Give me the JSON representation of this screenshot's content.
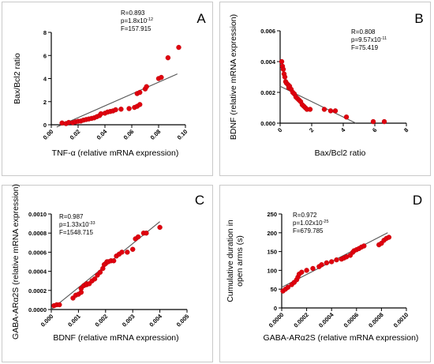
{
  "chart_data": [
    {
      "panel": "A",
      "type": "scatter",
      "xlabel": "TNF-α (relative mRNA expression)",
      "ylabel": "Bax/Bcl2 ratio",
      "xlim": [
        0.0,
        0.1
      ],
      "ylim": [
        0,
        8
      ],
      "xticks": [
        "0.00",
        "0.02",
        "0.04",
        "0.06",
        "0.08",
        "0.10"
      ],
      "yticks": [
        "0",
        "2",
        "4",
        "6",
        "8"
      ],
      "stats": [
        {
          "base": "R=0.893"
        },
        {
          "base": "p=1.8x10",
          "exp": "-12"
        },
        {
          "base": "F=157.915"
        }
      ],
      "points": [
        [
          0.008,
          0.15
        ],
        [
          0.011,
          0.1
        ],
        [
          0.013,
          0.2
        ],
        [
          0.016,
          0.18
        ],
        [
          0.018,
          0.25
        ],
        [
          0.02,
          0.3
        ],
        [
          0.022,
          0.32
        ],
        [
          0.024,
          0.4
        ],
        [
          0.026,
          0.45
        ],
        [
          0.028,
          0.5
        ],
        [
          0.03,
          0.55
        ],
        [
          0.032,
          0.6
        ],
        [
          0.034,
          0.7
        ],
        [
          0.036,
          0.8
        ],
        [
          0.037,
          0.95
        ],
        [
          0.04,
          1.0
        ],
        [
          0.042,
          1.1
        ],
        [
          0.044,
          1.15
        ],
        [
          0.046,
          1.2
        ],
        [
          0.048,
          1.3
        ],
        [
          0.052,
          1.35
        ],
        [
          0.058,
          1.4
        ],
        [
          0.062,
          1.5
        ],
        [
          0.064,
          1.6
        ],
        [
          0.066,
          1.75
        ],
        [
          0.064,
          2.7
        ],
        [
          0.066,
          2.8
        ],
        [
          0.07,
          3.1
        ],
        [
          0.071,
          3.3
        ],
        [
          0.08,
          4.0
        ],
        [
          0.082,
          4.1
        ],
        [
          0.087,
          5.8
        ],
        [
          0.095,
          6.7
        ]
      ],
      "fit": [
        [
          0.004,
          -0.2
        ],
        [
          0.094,
          4.4
        ]
      ]
    },
    {
      "panel": "B",
      "type": "scatter",
      "xlabel": "Bax/Bcl2 ratio",
      "ylabel": "BDNF (relative mRNA expression)",
      "xlim": [
        0,
        8
      ],
      "ylim": [
        0,
        0.006
      ],
      "xticks": [
        "0",
        "2",
        "4",
        "6",
        "8"
      ],
      "yticks": [
        "0.000",
        "0.002",
        "0.004",
        "0.006"
      ],
      "stats": [
        {
          "base": "R=0.808"
        },
        {
          "base": "p=9.57x10",
          "exp": "-11"
        },
        {
          "base": "F=75.419"
        }
      ],
      "points": [
        [
          0.1,
          0.004
        ],
        [
          0.15,
          0.0037
        ],
        [
          0.2,
          0.0035
        ],
        [
          0.25,
          0.0032
        ],
        [
          0.3,
          0.003
        ],
        [
          0.35,
          0.0027
        ],
        [
          0.4,
          0.0026
        ],
        [
          0.5,
          0.0025
        ],
        [
          0.55,
          0.0023
        ],
        [
          0.6,
          0.0024
        ],
        [
          0.7,
          0.0022
        ],
        [
          0.8,
          0.002
        ],
        [
          0.9,
          0.0019
        ],
        [
          1.0,
          0.0017
        ],
        [
          1.1,
          0.0016
        ],
        [
          1.2,
          0.0015
        ],
        [
          1.3,
          0.0014
        ],
        [
          1.4,
          0.0012
        ],
        [
          1.5,
          0.0011
        ],
        [
          1.6,
          0.001
        ],
        [
          1.7,
          0.0009
        ],
        [
          1.9,
          0.0009
        ],
        [
          2.8,
          0.0009
        ],
        [
          3.2,
          0.0008
        ],
        [
          3.5,
          0.0008
        ],
        [
          4.2,
          0.0004
        ],
        [
          5.9,
          0.0001
        ],
        [
          6.6,
          0.0001
        ]
      ],
      "fit": [
        [
          0.0,
          0.0024
        ],
        [
          4.8,
          0.0
        ]
      ]
    },
    {
      "panel": "C",
      "type": "scatter",
      "xlabel": "BDNF (relative mRNA expression)",
      "ylabel": "GABA-ARα2S (relative mRNA expression)",
      "xlim": [
        0,
        0.005
      ],
      "ylim": [
        0,
        0.001
      ],
      "xticks": [
        "0.000",
        "0.001",
        "0.002",
        "0.003",
        "0.004",
        "0.005"
      ],
      "yticks": [
        "0.0000",
        "0.0002",
        "0.0004",
        "0.0006",
        "0.0008",
        "0.0010"
      ],
      "stats": [
        {
          "base": "R=0.987"
        },
        {
          "base": "p=1.33x10",
          "exp": "-33"
        },
        {
          "base": "F=1548.715"
        }
      ],
      "points": [
        [
          0.0001,
          4e-05
        ],
        [
          0.0002,
          5e-05
        ],
        [
          0.0003,
          5e-05
        ],
        [
          0.0008,
          0.00012
        ],
        [
          0.0009,
          0.00015
        ],
        [
          0.001,
          0.00016
        ],
        [
          0.0011,
          0.00018
        ],
        [
          0.0011,
          0.00022
        ],
        [
          0.0012,
          0.00025
        ],
        [
          0.0013,
          0.00026
        ],
        [
          0.0013,
          0.00027
        ],
        [
          0.0014,
          0.00027
        ],
        [
          0.0015,
          0.0003
        ],
        [
          0.0016,
          0.00032
        ],
        [
          0.0017,
          0.00036
        ],
        [
          0.0018,
          0.00039
        ],
        [
          0.0019,
          0.00043
        ],
        [
          0.00195,
          0.00047
        ],
        [
          0.002,
          0.00048
        ],
        [
          0.00205,
          0.0005
        ],
        [
          0.0021,
          0.0005
        ],
        [
          0.0022,
          0.00051
        ],
        [
          0.0023,
          0.00051
        ],
        [
          0.0024,
          0.00056
        ],
        [
          0.0025,
          0.00058
        ],
        [
          0.0026,
          0.0006
        ],
        [
          0.0028,
          0.0006
        ],
        [
          0.003,
          0.00063
        ],
        [
          0.0031,
          0.00074
        ],
        [
          0.0032,
          0.00076
        ],
        [
          0.0034,
          0.0008
        ],
        [
          0.0035,
          0.0008
        ],
        [
          0.004,
          0.00086
        ]
      ],
      "fit": [
        [
          0.0,
          0.0
        ],
        [
          0.004,
          0.00092
        ]
      ]
    },
    {
      "panel": "D",
      "type": "scatter",
      "xlabel": "GABA-ARα2S (relative mRNA expression)",
      "ylabel": "Cumulative duration in open arms (s)",
      "xlim": [
        0,
        0.001
      ],
      "ylim": [
        0,
        250
      ],
      "xticks": [
        "0.0000",
        "0.0002",
        "0.0004",
        "0.0006",
        "0.0008",
        "0.0010"
      ],
      "yticks": [
        "0",
        "50",
        "100",
        "150",
        "200",
        "250"
      ],
      "stats": [
        {
          "base": "R=0.972"
        },
        {
          "base": "p=1.02x10",
          "exp": "-25"
        },
        {
          "base": "F=679.785"
        }
      ],
      "points": [
        [
          1e-05,
          45
        ],
        [
          3e-05,
          50
        ],
        [
          5e-05,
          55
        ],
        [
          8e-05,
          62
        ],
        [
          0.0001,
          68
        ],
        [
          0.00012,
          75
        ],
        [
          0.00013,
          82
        ],
        [
          0.00014,
          90
        ],
        [
          0.00016,
          95
        ],
        [
          0.0002,
          100
        ],
        [
          0.00025,
          105
        ],
        [
          0.0003,
          110
        ],
        [
          0.00032,
          115
        ],
        [
          0.00036,
          120
        ],
        [
          0.0004,
          123
        ],
        [
          0.00044,
          128
        ],
        [
          0.00048,
          130
        ],
        [
          0.0005,
          133
        ],
        [
          0.00052,
          136
        ],
        [
          0.00055,
          140
        ],
        [
          0.00057,
          148
        ],
        [
          0.00058,
          152
        ],
        [
          0.0006,
          155
        ],
        [
          0.00062,
          158
        ],
        [
          0.00064,
          162
        ],
        [
          0.00066,
          165
        ],
        [
          0.00078,
          168
        ],
        [
          0.0008,
          172
        ],
        [
          0.00082,
          180
        ],
        [
          0.00084,
          185
        ],
        [
          0.00086,
          188
        ]
      ],
      "fit": [
        [
          0.0,
          55
        ],
        [
          0.00085,
          200
        ]
      ]
    }
  ],
  "colors": {
    "point": "#e0000f",
    "point_stroke": "#b30000",
    "fit": "#555555",
    "axis": "#000000",
    "frame": "#c9c9c9"
  }
}
